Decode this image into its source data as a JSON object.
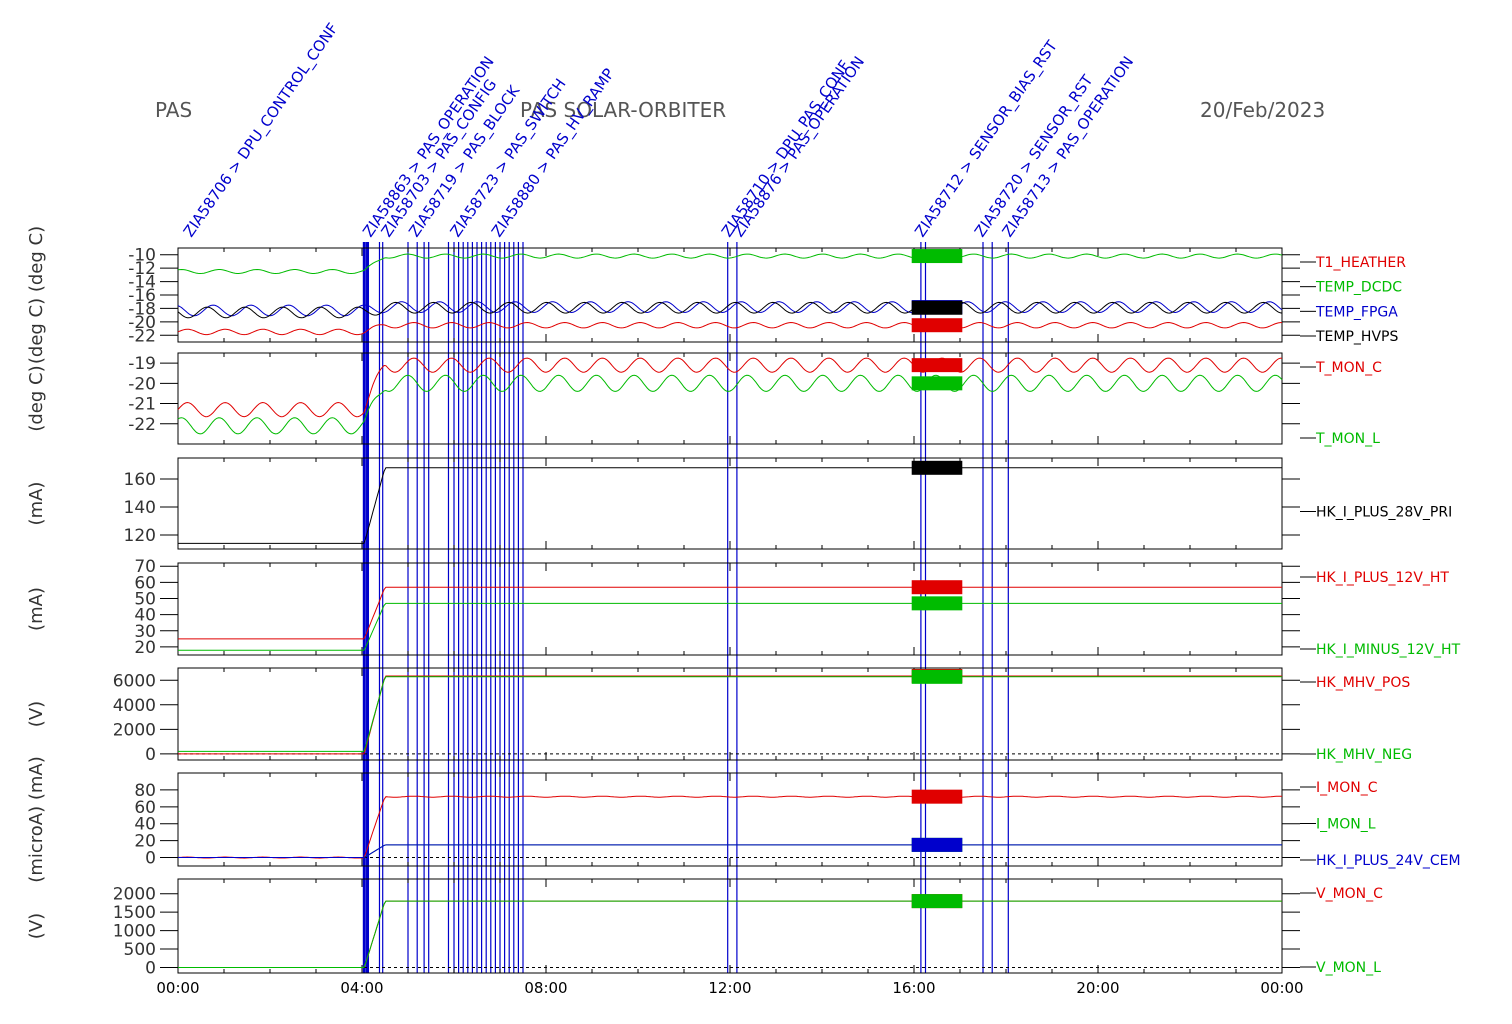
{
  "header": {
    "left": "PAS",
    "center": "PAS SOLAR-ORBITER",
    "right": "20/Feb/2023"
  },
  "chart_data": {
    "type": "line",
    "x_ticks": [
      "00:00",
      "04:00",
      "08:00",
      "12:00",
      "16:00",
      "20:00",
      "00:00"
    ],
    "x_range_hours": [
      0,
      24
    ],
    "colors": {
      "red": "#e00000",
      "green": "#00bb00",
      "blue": "#0000cc",
      "black": "#000000"
    },
    "event_hours": [
      4.05,
      4.12,
      4.38,
      4.45,
      5.0,
      5.2,
      5.35,
      5.45,
      5.88,
      6.0,
      6.1,
      6.2,
      6.3,
      6.4,
      6.5,
      6.6,
      6.7,
      6.8,
      6.9,
      7.0,
      7.1,
      7.2,
      7.3,
      7.4,
      7.5,
      11.95,
      12.15,
      16.15,
      16.25,
      17.5,
      17.7,
      18.05
    ],
    "event_labels": [
      {
        "h": 0.2,
        "text": "ZIA58706 > DPU_CONTROL_CONF"
      },
      {
        "h": 4.1,
        "text": "ZIA58863 > PAS_OPERATION"
      },
      {
        "h": 4.5,
        "text": "ZIA58703 > PAS_CONFIG"
      },
      {
        "h": 5.1,
        "text": "ZIA58719 > PAS_BLOCK"
      },
      {
        "h": 6.0,
        "text": "ZIA58723 > PAS_SWITCH"
      },
      {
        "h": 6.9,
        "text": "ZIA58880 > PAS_HV_RAMP"
      },
      {
        "h": 11.9,
        "text": "ZIA58710 > DPU_PAS_CONF"
      },
      {
        "h": 12.15,
        "text": "ZIA58876 > PAS_OPERATION"
      },
      {
        "h": 16.1,
        "text": "ZIA58712 > SENSOR_BIAS_RST"
      },
      {
        "h": 17.4,
        "text": "ZIA58720 > SENSOR_RST"
      },
      {
        "h": 18.0,
        "text": "ZIA58713 > PAS_OPERATION"
      }
    ],
    "panels": [
      {
        "ylabel": "(deg C) (deg C)",
        "ylim": [
          -23,
          -9
        ],
        "yticks": [
          -10,
          -12,
          -14,
          -16,
          -18,
          -20,
          -22
        ],
        "ytick_labels": [
          "-10",
          "-12",
          "-14",
          "-16",
          "-18",
          "-20",
          "-22"
        ],
        "series": [
          {
            "name": "T1_HEATHER",
            "color": "red",
            "before": -21.5,
            "after": -20.5,
            "amp": 0.4
          },
          {
            "name": "TEMP_DCDC",
            "color": "green",
            "before": -12.5,
            "after": -10.2,
            "amp": 0.3
          },
          {
            "name": "TEMP_FPGA",
            "color": "blue",
            "before": -18.3,
            "after": -17.8,
            "amp": 0.8
          },
          {
            "name": "TEMP_HVPS",
            "color": "black",
            "before": -18.6,
            "after": -17.9,
            "amp": 0.8
          }
        ]
      },
      {
        "ylabel": "(deg C)",
        "ylim": [
          -23,
          -18.5
        ],
        "yticks": [
          -19,
          -20,
          -21,
          -22
        ],
        "ytick_labels": [
          "-19",
          "-20",
          "-21",
          "-22"
        ],
        "series": [
          {
            "name": "T_MON_C",
            "color": "red",
            "before": -21.3,
            "after": -19.1,
            "amp": 0.35
          },
          {
            "name": "T_MON_L",
            "color": "green",
            "before": -22.1,
            "after": -20.0,
            "amp": 0.4
          }
        ]
      },
      {
        "ylabel": "(mA)",
        "ylim": [
          110,
          175
        ],
        "yticks": [
          120,
          140,
          160
        ],
        "ytick_labels": [
          "120",
          "140",
          "160"
        ],
        "series": [
          {
            "name": "HK_I_PLUS_28V_PRI",
            "color": "black",
            "before": 114,
            "after": 168,
            "amp": 0
          }
        ]
      },
      {
        "ylabel": "(mA)",
        "ylim": [
          15,
          72
        ],
        "yticks": [
          20,
          30,
          40,
          50,
          60,
          70
        ],
        "ytick_labels": [
          "20",
          "30",
          "40",
          "50",
          "60",
          "70"
        ],
        "series": [
          {
            "name": "HK_I_PLUS_12V_HT",
            "color": "red",
            "before": 25,
            "after": 57,
            "amp": 0
          },
          {
            "name": "HK_I_MINUS_12V_HT",
            "color": "green",
            "before": 18,
            "after": 47,
            "amp": 0
          }
        ]
      },
      {
        "ylabel": "(V)",
        "ylim": [
          -500,
          7000
        ],
        "yticks": [
          0,
          2000,
          4000,
          6000
        ],
        "ytick_labels": [
          "0",
          "2000",
          "4000",
          "6000"
        ],
        "series": [
          {
            "name": "HK_MHV_POS",
            "color": "red",
            "before": 0,
            "after": 6350,
            "amp": 0
          },
          {
            "name": "HK_MHV_NEG",
            "color": "green",
            "before": 200,
            "after": 6280,
            "amp": 0
          }
        ]
      },
      {
        "ylabel": "(microA) (mA)",
        "ylim": [
          -10,
          100
        ],
        "yticks": [
          0,
          20,
          40,
          60,
          80
        ],
        "ytick_labels": [
          "0",
          "20",
          "40",
          "60",
          "80"
        ],
        "series": [
          {
            "name": "I_MON_C",
            "color": "red",
            "before": 0,
            "after": 72,
            "amp": 0.6
          },
          {
            "name": "I_MON_L",
            "color": "green",
            "before": 0,
            "after": 15,
            "amp": 0
          },
          {
            "name": "HK_I_PLUS_24V_CEM",
            "color": "blue",
            "before": 0,
            "after": 15,
            "amp": 0
          }
        ]
      },
      {
        "ylabel": "(V)",
        "ylim": [
          -150,
          2400
        ],
        "yticks": [
          0,
          500,
          1000,
          1500,
          2000
        ],
        "ytick_labels": [
          "0",
          "500",
          "1000",
          "1500",
          "2000"
        ],
        "series": [
          {
            "name": "V_MON_C",
            "color": "red",
            "before": 0,
            "after": 1800,
            "amp": 0
          },
          {
            "name": "V_MON_L",
            "color": "green",
            "before": 0,
            "after": 1800,
            "amp": 0
          }
        ]
      }
    ]
  }
}
